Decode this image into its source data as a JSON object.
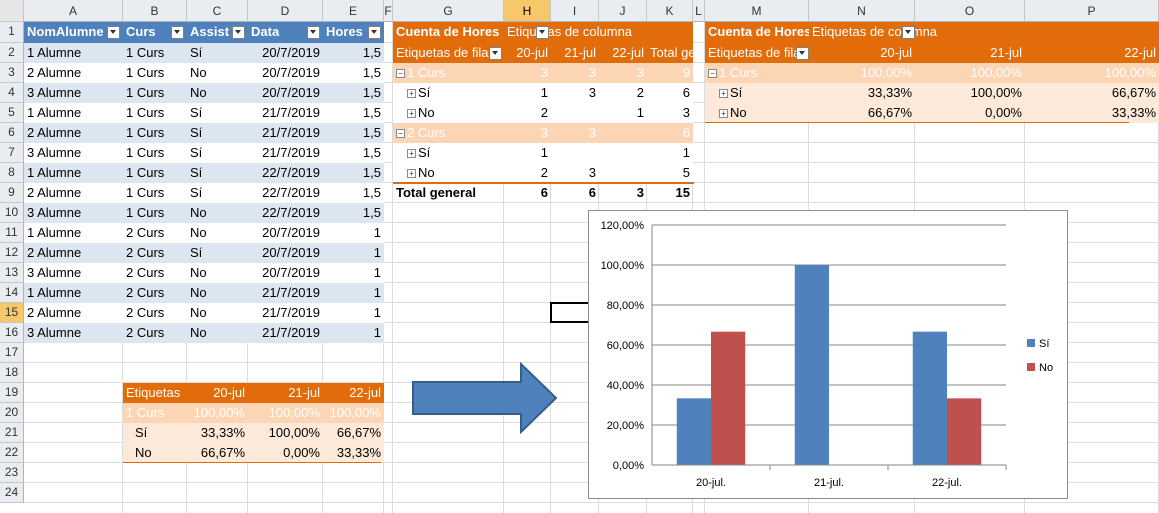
{
  "columns": [
    "A",
    "B",
    "C",
    "D",
    "E",
    "F",
    "G",
    "H",
    "I",
    "J",
    "K",
    "L",
    "M",
    "N",
    "O",
    "P"
  ],
  "rows": [
    "1",
    "2",
    "3",
    "4",
    "5",
    "6",
    "7",
    "8",
    "9",
    "10",
    "11",
    "12",
    "13",
    "14",
    "15",
    "16",
    "17",
    "18",
    "19",
    "20",
    "21",
    "22",
    "23",
    "24"
  ],
  "source_table": {
    "headers": [
      "NomAlumne",
      "Curs",
      "Assist",
      "Data",
      "Hores"
    ],
    "rows": [
      [
        "1 Alumne",
        "1 Curs",
        "Sí",
        "20/7/2019",
        "1,5"
      ],
      [
        "2 Alumne",
        "1 Curs",
        "No",
        "20/7/2019",
        "1,5"
      ],
      [
        "3 Alumne",
        "1 Curs",
        "No",
        "20/7/2019",
        "1,5"
      ],
      [
        "1 Alumne",
        "1 Curs",
        "Sí",
        "21/7/2019",
        "1,5"
      ],
      [
        "2 Alumne",
        "1 Curs",
        "Sí",
        "21/7/2019",
        "1,5"
      ],
      [
        "3 Alumne",
        "1 Curs",
        "Sí",
        "21/7/2019",
        "1,5"
      ],
      [
        "1 Alumne",
        "1 Curs",
        "Sí",
        "22/7/2019",
        "1,5"
      ],
      [
        "2 Alumne",
        "1 Curs",
        "Sí",
        "22/7/2019",
        "1,5"
      ],
      [
        "3 Alumne",
        "1 Curs",
        "No",
        "22/7/2019",
        "1,5"
      ],
      [
        "1 Alumne",
        "2 Curs",
        "No",
        "20/7/2019",
        "1"
      ],
      [
        "2 Alumne",
        "2 Curs",
        "Sí",
        "20/7/2019",
        "1"
      ],
      [
        "3 Alumne",
        "2 Curs",
        "No",
        "20/7/2019",
        "1"
      ],
      [
        "1 Alumne",
        "2 Curs",
        "No",
        "21/7/2019",
        "1"
      ],
      [
        "2 Alumne",
        "2 Curs",
        "No",
        "21/7/2019",
        "1"
      ],
      [
        "3 Alumne",
        "2 Curs",
        "No",
        "21/7/2019",
        "1"
      ]
    ]
  },
  "pivot1": {
    "title": "Cuenta de Hores",
    "col_label": "Etiquetas de columna",
    "row_label": "Etiquetas de fila",
    "headers": [
      "20-jul",
      "21-jul",
      "22-jul",
      "Total general"
    ],
    "rows": [
      {
        "label": "1 Curs",
        "values": [
          "3",
          "3",
          "3",
          "9"
        ],
        "type": "group"
      },
      {
        "label": "Sí",
        "values": [
          "1",
          "3",
          "2",
          "6"
        ],
        "type": "item"
      },
      {
        "label": "No",
        "values": [
          "2",
          "",
          "1",
          "3"
        ],
        "type": "item"
      },
      {
        "label": "2 Curs",
        "values": [
          "3",
          "3",
          "",
          "6"
        ],
        "type": "group"
      },
      {
        "label": "Sí",
        "values": [
          "1",
          "",
          "",
          "1"
        ],
        "type": "item"
      },
      {
        "label": "No",
        "values": [
          "2",
          "3",
          "",
          "5"
        ],
        "type": "item"
      }
    ],
    "total": {
      "label": "Total general",
      "values": [
        "6",
        "6",
        "3",
        "15"
      ]
    }
  },
  "pivot2": {
    "title": "Cuenta de Hores",
    "col_label": "Etiquetas de columna",
    "row_label": "Etiquetas de fila",
    "headers": [
      "20-jul",
      "21-jul",
      "22-jul"
    ],
    "rows": [
      {
        "label": "1 Curs",
        "values": [
          "100,00%",
          "100,00%",
          "100,00%"
        ],
        "type": "group"
      },
      {
        "label": "Sí",
        "values": [
          "33,33%",
          "100,00%",
          "66,67%"
        ],
        "type": "item"
      },
      {
        "label": "No",
        "values": [
          "66,67%",
          "0,00%",
          "33,33%"
        ],
        "type": "item"
      }
    ]
  },
  "small_table": {
    "header": [
      "Etiquetas",
      "20-jul",
      "21-jul",
      "22-jul"
    ],
    "rows": [
      {
        "label": "1 Curs",
        "values": [
          "100,00%",
          "100,00%",
          "100,00%"
        ],
        "type": "group"
      },
      {
        "label": "Sí",
        "values": [
          "33,33%",
          "100,00%",
          "66,67%"
        ],
        "type": "item"
      },
      {
        "label": "No",
        "values": [
          "66,67%",
          "0,00%",
          "33,33%"
        ],
        "type": "item"
      }
    ]
  },
  "colors": {
    "header_blue": "#4f81bd",
    "band_blue": "#dce6f1",
    "pivot_orange": "#e26b0a",
    "pivot_light": "#fcd5b4",
    "pivot_pale": "#fde9d9",
    "series_si": "#4f81bd",
    "series_no": "#c0504d",
    "arrow": "#4f81bd"
  },
  "chart_data": {
    "type": "bar",
    "categories": [
      "20-jul.",
      "21-jul.",
      "22-jul."
    ],
    "series": [
      {
        "name": "Sí",
        "values": [
          33.33,
          100,
          66.67
        ]
      },
      {
        "name": "No",
        "values": [
          66.67,
          0,
          33.33
        ]
      }
    ],
    "ylim": [
      0,
      120
    ],
    "yticks": [
      "0,00%",
      "20,00%",
      "40,00%",
      "60,00%",
      "80,00%",
      "100,00%",
      "120,00%"
    ],
    "legend": "right",
    "grid": true
  }
}
